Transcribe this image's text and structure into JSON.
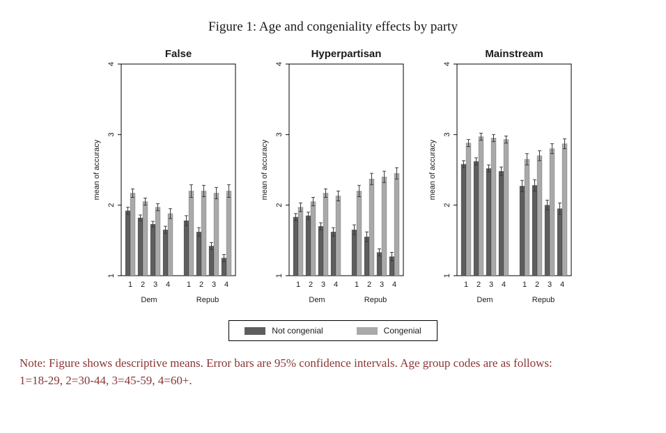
{
  "figure": {
    "title": "Figure 1: Age and congeniality effects by party",
    "note_line1": "Note: Figure shows descriptive means. Error bars are 95% confidence intervals. Age group codes are as follows:",
    "note_line2": "1=18-29, 2=30-44, 3=45-59, 4=60+.",
    "note_color": "#8b3535"
  },
  "legend": {
    "items": [
      {
        "label": "Not congenial",
        "color": "#5e5e5e"
      },
      {
        "label": "Congenial",
        "color": "#a9a9a9"
      }
    ]
  },
  "chart_data": [
    {
      "type": "bar",
      "title": "False",
      "ylabel": "mean of accuracy",
      "ylim": [
        1,
        4
      ],
      "yticks": [
        1,
        2,
        3,
        4
      ],
      "legend_position": "bottom",
      "error_bars": "95% confidence intervals",
      "series_names": [
        "Not congenial",
        "Congenial"
      ],
      "series_colors": [
        "#5e5e5e",
        "#a9a9a9"
      ],
      "groups": [
        {
          "label": "Dem",
          "categories": [
            "1",
            "2",
            "3",
            "4"
          ],
          "series": [
            {
              "name": "Not congenial",
              "values": [
                1.92,
                1.82,
                1.73,
                1.65
              ],
              "ci": [
                0.05,
                0.04,
                0.04,
                0.05
              ]
            },
            {
              "name": "Congenial",
              "values": [
                2.17,
                2.05,
                1.97,
                1.88
              ],
              "ci": [
                0.06,
                0.05,
                0.05,
                0.07
              ]
            }
          ]
        },
        {
          "label": "Repub",
          "categories": [
            "1",
            "2",
            "3",
            "4"
          ],
          "series": [
            {
              "name": "Not congenial",
              "values": [
                1.78,
                1.62,
                1.42,
                1.25
              ],
              "ci": [
                0.07,
                0.06,
                0.05,
                0.05
              ]
            },
            {
              "name": "Congenial",
              "values": [
                2.2,
                2.2,
                2.17,
                2.2
              ],
              "ci": [
                0.09,
                0.08,
                0.08,
                0.09
              ]
            }
          ]
        }
      ]
    },
    {
      "type": "bar",
      "title": "Hyperpartisan",
      "ylabel": "mean of accuracy",
      "ylim": [
        1,
        4
      ],
      "yticks": [
        1,
        2,
        3,
        4
      ],
      "legend_position": "bottom",
      "error_bars": "95% confidence intervals",
      "series_names": [
        "Not congenial",
        "Congenial"
      ],
      "series_colors": [
        "#5e5e5e",
        "#a9a9a9"
      ],
      "groups": [
        {
          "label": "Dem",
          "categories": [
            "1",
            "2",
            "3",
            "4"
          ],
          "series": [
            {
              "name": "Not congenial",
              "values": [
                1.83,
                1.85,
                1.7,
                1.62
              ],
              "ci": [
                0.05,
                0.05,
                0.05,
                0.06
              ]
            },
            {
              "name": "Congenial",
              "values": [
                1.97,
                2.05,
                2.17,
                2.13
              ],
              "ci": [
                0.06,
                0.06,
                0.06,
                0.07
              ]
            }
          ]
        },
        {
          "label": "Repub",
          "categories": [
            "1",
            "2",
            "3",
            "4"
          ],
          "series": [
            {
              "name": "Not congenial",
              "values": [
                1.65,
                1.55,
                1.33,
                1.27
              ],
              "ci": [
                0.07,
                0.07,
                0.05,
                0.06
              ]
            },
            {
              "name": "Congenial",
              "values": [
                2.2,
                2.37,
                2.4,
                2.45
              ],
              "ci": [
                0.08,
                0.08,
                0.08,
                0.08
              ]
            }
          ]
        }
      ]
    },
    {
      "type": "bar",
      "title": "Mainstream",
      "ylabel": "mean of accuracy",
      "ylim": [
        1,
        4
      ],
      "yticks": [
        1,
        2,
        3,
        4
      ],
      "legend_position": "bottom",
      "error_bars": "95% confidence intervals",
      "series_names": [
        "Not congenial",
        "Congenial"
      ],
      "series_colors": [
        "#5e5e5e",
        "#a9a9a9"
      ],
      "groups": [
        {
          "label": "Dem",
          "categories": [
            "1",
            "2",
            "3",
            "4"
          ],
          "series": [
            {
              "name": "Not congenial",
              "values": [
                2.58,
                2.62,
                2.52,
                2.48
              ],
              "ci": [
                0.05,
                0.05,
                0.05,
                0.06
              ]
            },
            {
              "name": "Congenial",
              "values": [
                2.88,
                2.97,
                2.95,
                2.93
              ],
              "ci": [
                0.05,
                0.05,
                0.05,
                0.05
              ]
            }
          ]
        },
        {
          "label": "Repub",
          "categories": [
            "1",
            "2",
            "3",
            "4"
          ],
          "series": [
            {
              "name": "Not congenial",
              "values": [
                2.27,
                2.28,
                2.0,
                1.95
              ],
              "ci": [
                0.08,
                0.08,
                0.07,
                0.08
              ]
            },
            {
              "name": "Congenial",
              "values": [
                2.65,
                2.7,
                2.8,
                2.87
              ],
              "ci": [
                0.08,
                0.07,
                0.07,
                0.07
              ]
            }
          ]
        }
      ]
    }
  ]
}
